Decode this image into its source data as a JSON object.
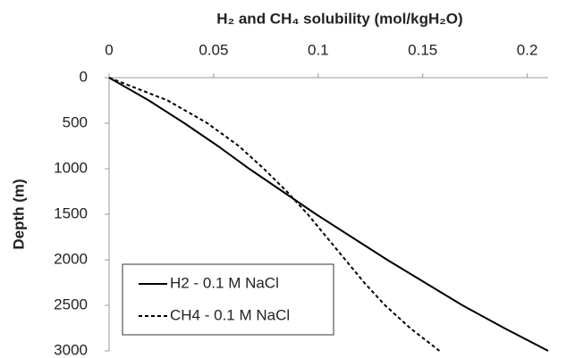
{
  "chart_data": {
    "type": "line",
    "title": "H₂ and CH₄ solubility (mol/kgH₂O)",
    "y_label": "Depth (m)",
    "y": [
      0,
      250,
      500,
      750,
      1000,
      1250,
      1500,
      1750,
      2000,
      2250,
      2500,
      2750,
      3000
    ],
    "series": [
      {
        "name": "H2 - 0.1 M NaCl",
        "color": "#000000",
        "dash": "solid",
        "values": [
          0,
          0.019,
          0.036,
          0.052,
          0.067,
          0.083,
          0.099,
          0.116,
          0.133,
          0.151,
          0.169,
          0.189,
          0.21
        ]
      },
      {
        "name": "CH4 - 0.1 M NaCl",
        "color": "#000000",
        "dash": "dashed",
        "values": [
          0,
          0.028,
          0.047,
          0.062,
          0.074,
          0.085,
          0.095,
          0.104,
          0.113,
          0.122,
          0.132,
          0.144,
          0.158
        ]
      }
    ],
    "xlim": [
      0,
      0.21
    ],
    "xticks": [
      0,
      0.05,
      0.1,
      0.15,
      0.2
    ],
    "x_axis_position": "top",
    "ylim": [
      0,
      3000
    ],
    "yticks": [
      0,
      500,
      1000,
      1500,
      2000,
      2500,
      3000
    ],
    "y_inverted": true,
    "grid": false,
    "legend": "bottom-left"
  }
}
